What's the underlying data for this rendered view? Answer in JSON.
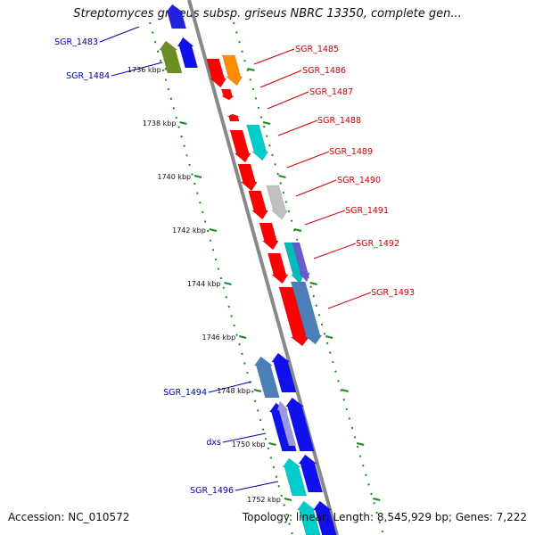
{
  "title": "Streptomyces griseus subsp. griseus NBRC 13350, complete gen...",
  "footer": {
    "accession": "Accession: NC_010572",
    "summary": "Topology: linear; Length: 8,545,929 bp; Genes: 7,222"
  },
  "colors": {
    "forward_label": "#cc0000",
    "reverse_label": "#0000aa",
    "tick": "#1a8a1a",
    "backbone": "#888888"
  },
  "ruler": [
    "1736 kbp",
    "1738 kbp",
    "1740 kbp",
    "1742 kbp",
    "1744 kbp",
    "1746 kbp",
    "1748 kbp",
    "1750 kbp",
    "1752 kbp"
  ],
  "gene_labels": [
    {
      "name": "SGR_1483",
      "strand": "minus"
    },
    {
      "name": "SGR_1484",
      "strand": "minus"
    },
    {
      "name": "SGR_1485",
      "strand": "plus"
    },
    {
      "name": "SGR_1486",
      "strand": "plus"
    },
    {
      "name": "SGR_1487",
      "strand": "plus"
    },
    {
      "name": "SGR_1488",
      "strand": "plus"
    },
    {
      "name": "SGR_1489",
      "strand": "plus"
    },
    {
      "name": "SGR_1490",
      "strand": "plus"
    },
    {
      "name": "SGR_1491",
      "strand": "plus"
    },
    {
      "name": "SGR_1492",
      "strand": "plus"
    },
    {
      "name": "SGR_1493",
      "strand": "plus"
    },
    {
      "name": "SGR_1494",
      "strand": "minus"
    },
    {
      "name": "dxs",
      "strand": "minus"
    },
    {
      "name": "SGR_1496",
      "strand": "minus"
    }
  ]
}
